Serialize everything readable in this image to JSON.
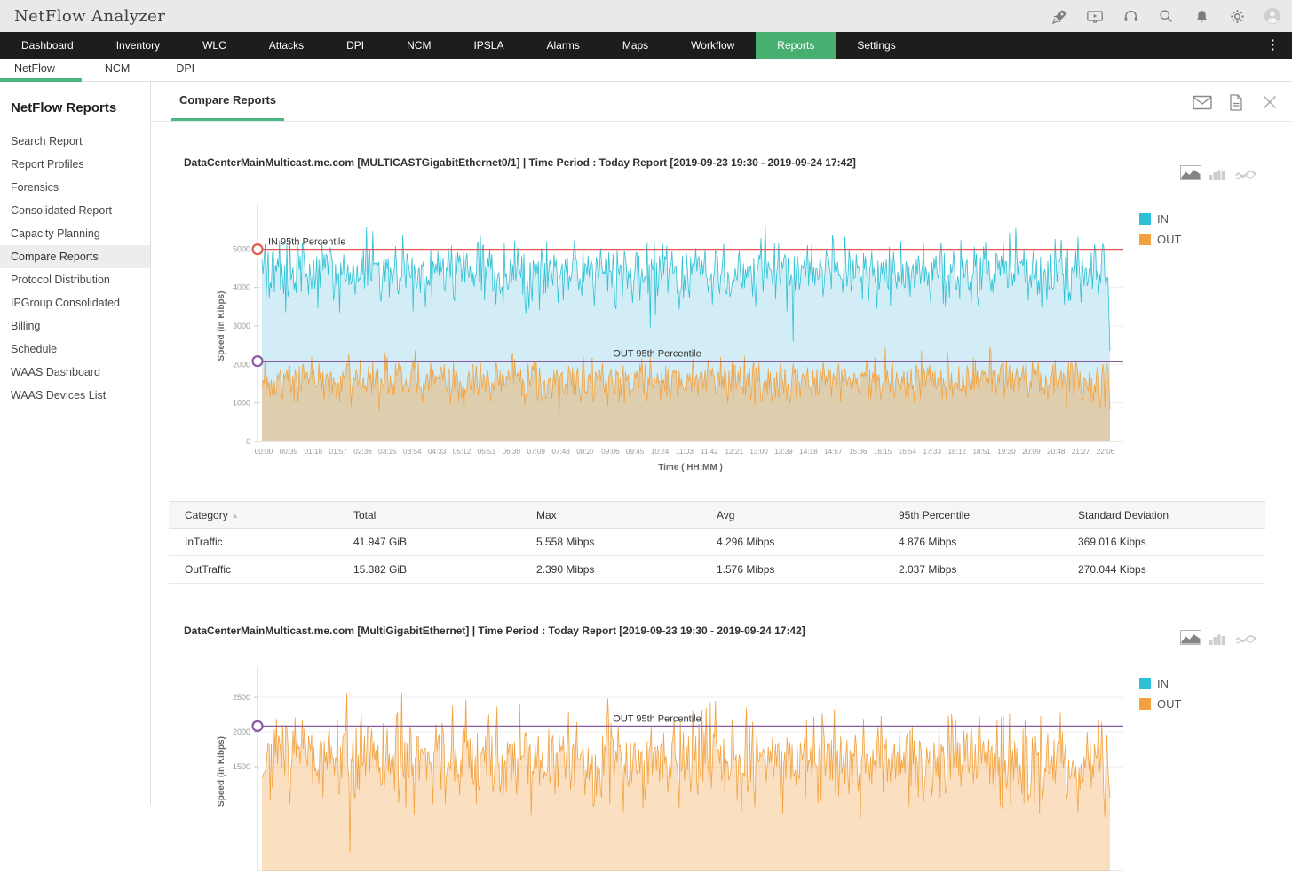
{
  "topbar": {
    "title": "NetFlow Analyzer",
    "icons": [
      "rocket-icon",
      "demo-video-icon",
      "support-headset-icon",
      "search-icon",
      "notifications-bell-icon",
      "settings-gear-icon",
      "user-avatar-icon"
    ]
  },
  "navbar": {
    "items": [
      "Dashboard",
      "Inventory",
      "WLC",
      "Attacks",
      "DPI",
      "NCM",
      "IPSLA",
      "Alarms",
      "Maps",
      "Workflow",
      "Reports",
      "Settings"
    ],
    "active": "Reports",
    "overflow_glyph": "⋮"
  },
  "subnav": {
    "items": [
      "NetFlow",
      "NCM",
      "DPI"
    ],
    "active": "NetFlow"
  },
  "sidebar": {
    "heading": "NetFlow Reports",
    "items": [
      "Search Report",
      "Report Profiles",
      "Forensics",
      "Consolidated Report",
      "Capacity Planning",
      "Compare Reports",
      "Protocol Distribution",
      "IPGroup Consolidated",
      "Billing",
      "Schedule",
      "WAAS Dashboard",
      "WAAS Devices List"
    ],
    "active": "Compare Reports"
  },
  "panel": {
    "tab": "Compare Reports",
    "icons": [
      "email-envelope-icon",
      "pdf-export-icon",
      "close-icon"
    ],
    "chart_type_icons": [
      "area-chart-icon",
      "bar-chart-icon",
      "line-chart-icon"
    ],
    "active_chart_type": "area-chart-icon"
  },
  "table": {
    "headers": [
      "Category",
      "Total",
      "Max",
      "Avg",
      "95th Percentile",
      "Standard Deviation"
    ],
    "sorted_by": "Category",
    "rows": [
      [
        "InTraffic",
        "41.947 GiB",
        "5.558 Mibps",
        "4.296 Mibps",
        "4.876 Mibps",
        "369.016 Kibps"
      ],
      [
        "OutTraffic",
        "15.382 GiB",
        "2.390 Mibps",
        "1.576 Mibps",
        "2.037 Mibps",
        "270.044 Kibps"
      ]
    ]
  },
  "colors": {
    "accent_green": "#47af70",
    "tab_underline": "#4db784",
    "navbar_bg": "#1d1d1d",
    "topbar_bg": "#e9e9e7",
    "in_series": "#2ec1d5",
    "out_series": "#f2a341",
    "percentile_red": "#e25853",
    "percentile_purple": "#8a5ba5"
  },
  "chart_data": [
    {
      "type": "area",
      "title": "DataCenterMainMulticast.me.com [MULTICASTGigabitEthernet0/1] | Time Period : Today Report [2019-09-23 19:30 - 2019-09-24 17:42]",
      "ylabel": "Speed (in Kibps)",
      "xlabel": "Time ( HH:MM )",
      "ylim": [
        0,
        6000
      ],
      "yticks": [
        0,
        1000,
        2000,
        3000,
        4000,
        5000
      ],
      "xticklabels": [
        "00:00",
        "00:39",
        "01:18",
        "01:57",
        "02:36",
        "03:15",
        "03:54",
        "04:33",
        "05:12",
        "05:51",
        "06:30",
        "07:09",
        "07:48",
        "08:27",
        "09:06",
        "09:45",
        "10:24",
        "11:03",
        "11:42",
        "12:21",
        "13:00",
        "13:39",
        "14:18",
        "14:57",
        "15:36",
        "16:15",
        "16:54",
        "17:33",
        "18:12",
        "18:51",
        "19:30",
        "20:09",
        "20:48",
        "21:27",
        "22:06"
      ],
      "legend": [
        "IN",
        "OUT"
      ],
      "legend_position": "right-top",
      "grid": true,
      "series": [
        {
          "name": "IN",
          "color": "#2ec1d5",
          "fill": "#d2edf5",
          "approx_kibps": {
            "avg": 4399,
            "max": 5691,
            "p95": 4993,
            "stddev": 369,
            "end_value": 2350
          }
        },
        {
          "name": "OUT",
          "color": "#f2a341",
          "fill": "rgba(240,164,74,0.42)",
          "approx_kibps": {
            "avg": 1614,
            "max": 2447,
            "p95": 2086,
            "stddev": 270,
            "end_value": 850
          }
        }
      ],
      "annotations": [
        {
          "label": "IN 95th Percentile",
          "value_kibps": 4993,
          "color": "#e25853",
          "align": "left"
        },
        {
          "label": "OUT 95th Percentile",
          "value_kibps": 2086,
          "color": "#8a5ba5",
          "align": "center"
        }
      ]
    },
    {
      "type": "area",
      "title": "DataCenterMainMulticast.me.com [MultiGigabitEthernet] | Time Period : Today Report [2019-09-23 19:30 - 2019-09-24 17:42]",
      "ylabel": "Speed (in Kibps)",
      "xlabel": "",
      "ylim": [
        0,
        2860
      ],
      "yticks": [
        1500,
        2000,
        2500
      ],
      "xticklabels": [],
      "legend": [
        "IN",
        "OUT"
      ],
      "legend_position": "right-top",
      "grid": true,
      "series": [
        {
          "name": "OUT",
          "color": "#f2a341",
          "fill": "rgba(240,164,74,0.35)",
          "approx_kibps": {
            "avg": 1620,
            "max": 2560,
            "p95": 2086,
            "stddev": 290,
            "end_value": 1050
          }
        }
      ],
      "annotations": [
        {
          "label": "OUT 95th Percentile",
          "value_kibps": 2086,
          "color": "#8a5ba5",
          "align": "center"
        }
      ]
    }
  ]
}
